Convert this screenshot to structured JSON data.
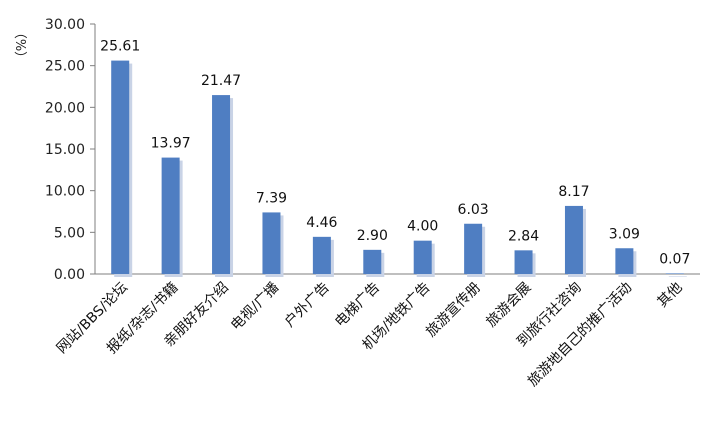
{
  "chart_data": {
    "type": "bar",
    "title": "",
    "xlabel": "",
    "ylabel": "（%）",
    "ylim": [
      0,
      30
    ],
    "yticks": [
      "0.00",
      "5.00",
      "10.00",
      "15.00",
      "20.00",
      "25.00",
      "30.00"
    ],
    "grid": false,
    "legend": "none",
    "categories": [
      "网站/BBS/论坛",
      "报纸/杂志/书籍",
      "亲朋好友介绍",
      "电视/广播",
      "户外广告",
      "电梯广告",
      "机场/地铁广告",
      "旅游宣传册",
      "旅游会展",
      "到旅行社咨询",
      "旅游地自己的推广活动",
      "其他"
    ],
    "values": [
      25.61,
      13.97,
      21.47,
      7.39,
      4.46,
      2.9,
      4.0,
      6.03,
      2.84,
      8.17,
      3.09,
      0.07
    ],
    "value_labels": [
      "25.61",
      "13.97",
      "21.47",
      "7.39",
      "4.46",
      "2.90",
      "4.00",
      "6.03",
      "2.84",
      "8.17",
      "3.09",
      "0.07"
    ],
    "bar_color": "#4f7ec2",
    "shadow_color": "#c9d3e6"
  }
}
